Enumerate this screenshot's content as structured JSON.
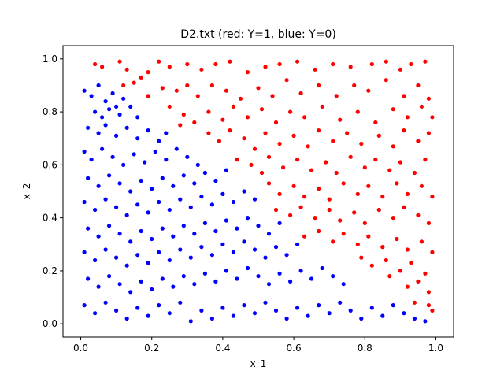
{
  "chart_data": {
    "type": "scatter",
    "title": "D2.txt (red: Y=1, blue: Y=0)",
    "xlabel": "x_1",
    "ylabel": "x_2",
    "xlim": [
      -0.05,
      1.05
    ],
    "ylim": [
      -0.05,
      1.05
    ],
    "xticks": [
      "0.0",
      "0.2",
      "0.4",
      "0.6",
      "0.8",
      "1.0"
    ],
    "yticks": [
      "0.0",
      "0.2",
      "0.4",
      "0.6",
      "0.8",
      "1.0"
    ],
    "grid": false,
    "legend": "none",
    "colors": {
      "Y=1": "#ff0000",
      "Y=0": "#0000ff"
    },
    "series": [
      {
        "label": "Y=1",
        "color": "#ff0000",
        "points": [
          [
            0.04,
            0.98
          ],
          [
            0.06,
            0.97
          ],
          [
            0.11,
            0.99
          ],
          [
            0.13,
            0.96
          ],
          [
            0.17,
            0.93
          ],
          [
            0.19,
            0.95
          ],
          [
            0.22,
            0.99
          ],
          [
            0.25,
            0.97
          ],
          [
            0.3,
            0.98
          ],
          [
            0.34,
            0.96
          ],
          [
            0.38,
            0.98
          ],
          [
            0.42,
            0.99
          ],
          [
            0.47,
            0.95
          ],
          [
            0.52,
            0.97
          ],
          [
            0.56,
            0.98
          ],
          [
            0.61,
            0.99
          ],
          [
            0.66,
            0.96
          ],
          [
            0.71,
            0.98
          ],
          [
            0.76,
            0.97
          ],
          [
            0.82,
            0.98
          ],
          [
            0.86,
            0.99
          ],
          [
            0.9,
            0.96
          ],
          [
            0.93,
            0.98
          ],
          [
            0.97,
            0.99
          ],
          [
            0.12,
            0.9
          ],
          [
            0.15,
            0.91
          ],
          [
            0.19,
            0.86
          ],
          [
            0.23,
            0.89
          ],
          [
            0.27,
            0.88
          ],
          [
            0.3,
            0.9
          ],
          [
            0.33,
            0.86
          ],
          [
            0.37,
            0.9
          ],
          [
            0.41,
            0.88
          ],
          [
            0.45,
            0.85
          ],
          [
            0.5,
            0.89
          ],
          [
            0.54,
            0.86
          ],
          [
            0.58,
            0.92
          ],
          [
            0.62,
            0.87
          ],
          [
            0.67,
            0.9
          ],
          [
            0.72,
            0.86
          ],
          [
            0.77,
            0.9
          ],
          [
            0.81,
            0.88
          ],
          [
            0.86,
            0.92
          ],
          [
            0.91,
            0.86
          ],
          [
            0.95,
            0.9
          ],
          [
            0.98,
            0.85
          ],
          [
            0.25,
            0.82
          ],
          [
            0.29,
            0.79
          ],
          [
            0.32,
            0.76
          ],
          [
            0.28,
            0.75
          ],
          [
            0.36,
            0.8
          ],
          [
            0.4,
            0.77
          ],
          [
            0.43,
            0.82
          ],
          [
            0.47,
            0.78
          ],
          [
            0.51,
            0.81
          ],
          [
            0.55,
            0.76
          ],
          [
            0.59,
            0.8
          ],
          [
            0.63,
            0.78
          ],
          [
            0.68,
            0.82
          ],
          [
            0.73,
            0.77
          ],
          [
            0.78,
            0.8
          ],
          [
            0.83,
            0.76
          ],
          [
            0.88,
            0.81
          ],
          [
            0.92,
            0.78
          ],
          [
            0.96,
            0.82
          ],
          [
            0.99,
            0.78
          ],
          [
            0.36,
            0.72
          ],
          [
            0.39,
            0.69
          ],
          [
            0.42,
            0.73
          ],
          [
            0.46,
            0.7
          ],
          [
            0.49,
            0.66
          ],
          [
            0.52,
            0.72
          ],
          [
            0.56,
            0.68
          ],
          [
            0.6,
            0.71
          ],
          [
            0.64,
            0.67
          ],
          [
            0.67,
            0.73
          ],
          [
            0.71,
            0.69
          ],
          [
            0.75,
            0.72
          ],
          [
            0.79,
            0.68
          ],
          [
            0.84,
            0.71
          ],
          [
            0.88,
            0.67
          ],
          [
            0.91,
            0.73
          ],
          [
            0.95,
            0.69
          ],
          [
            0.98,
            0.72
          ],
          [
            0.44,
            0.62
          ],
          [
            0.48,
            0.6
          ],
          [
            0.51,
            0.57
          ],
          [
            0.53,
            0.63
          ],
          [
            0.57,
            0.59
          ],
          [
            0.61,
            0.62
          ],
          [
            0.65,
            0.58
          ],
          [
            0.69,
            0.61
          ],
          [
            0.72,
            0.57
          ],
          [
            0.76,
            0.63
          ],
          [
            0.8,
            0.59
          ],
          [
            0.83,
            0.62
          ],
          [
            0.87,
            0.58
          ],
          [
            0.9,
            0.61
          ],
          [
            0.94,
            0.57
          ],
          [
            0.97,
            0.62
          ],
          [
            0.53,
            0.53
          ],
          [
            0.56,
            0.49
          ],
          [
            0.6,
            0.52
          ],
          [
            0.63,
            0.48
          ],
          [
            0.67,
            0.51
          ],
          [
            0.7,
            0.47
          ],
          [
            0.74,
            0.53
          ],
          [
            0.78,
            0.49
          ],
          [
            0.81,
            0.52
          ],
          [
            0.85,
            0.48
          ],
          [
            0.89,
            0.53
          ],
          [
            0.92,
            0.49
          ],
          [
            0.96,
            0.52
          ],
          [
            0.99,
            0.48
          ],
          [
            0.55,
            0.43
          ],
          [
            0.59,
            0.41
          ],
          [
            0.62,
            0.44
          ],
          [
            0.66,
            0.4
          ],
          [
            0.7,
            0.43
          ],
          [
            0.73,
            0.39
          ],
          [
            0.77,
            0.42
          ],
          [
            0.8,
            0.38
          ],
          [
            0.84,
            0.43
          ],
          [
            0.88,
            0.4
          ],
          [
            0.91,
            0.44
          ],
          [
            0.95,
            0.41
          ],
          [
            0.98,
            0.38
          ],
          [
            0.63,
            0.33
          ],
          [
            0.67,
            0.35
          ],
          [
            0.71,
            0.31
          ],
          [
            0.74,
            0.34
          ],
          [
            0.78,
            0.3
          ],
          [
            0.81,
            0.33
          ],
          [
            0.85,
            0.29
          ],
          [
            0.89,
            0.32
          ],
          [
            0.92,
            0.28
          ],
          [
            0.96,
            0.31
          ],
          [
            0.99,
            0.27
          ],
          [
            0.79,
            0.25
          ],
          [
            0.82,
            0.22
          ],
          [
            0.86,
            0.24
          ],
          [
            0.9,
            0.2
          ],
          [
            0.93,
            0.23
          ],
          [
            0.97,
            0.19
          ],
          [
            0.87,
            0.18
          ],
          [
            0.92,
            0.14
          ],
          [
            0.95,
            0.16
          ],
          [
            0.98,
            0.12
          ],
          [
            0.94,
            0.08
          ],
          [
            0.98,
            0.07
          ],
          [
            0.99,
            0.05
          ]
        ]
      },
      {
        "label": "Y=0",
        "color": "#0000ff",
        "points": [
          [
            0.01,
            0.88
          ],
          [
            0.03,
            0.86
          ],
          [
            0.05,
            0.9
          ],
          [
            0.07,
            0.84
          ],
          [
            0.09,
            0.87
          ],
          [
            0.1,
            0.82
          ],
          [
            0.12,
            0.85
          ],
          [
            0.04,
            0.8
          ],
          [
            0.06,
            0.78
          ],
          [
            0.08,
            0.81
          ],
          [
            0.11,
            0.79
          ],
          [
            0.14,
            0.82
          ],
          [
            0.16,
            0.78
          ],
          [
            0.02,
            0.74
          ],
          [
            0.05,
            0.72
          ],
          [
            0.07,
            0.75
          ],
          [
            0.1,
            0.71
          ],
          [
            0.13,
            0.74
          ],
          [
            0.16,
            0.7
          ],
          [
            0.19,
            0.73
          ],
          [
            0.22,
            0.69
          ],
          [
            0.24,
            0.72
          ],
          [
            0.01,
            0.65
          ],
          [
            0.03,
            0.62
          ],
          [
            0.06,
            0.66
          ],
          [
            0.09,
            0.63
          ],
          [
            0.12,
            0.6
          ],
          [
            0.15,
            0.64
          ],
          [
            0.18,
            0.61
          ],
          [
            0.21,
            0.65
          ],
          [
            0.24,
            0.62
          ],
          [
            0.27,
            0.66
          ],
          [
            0.3,
            0.63
          ],
          [
            0.33,
            0.6
          ],
          [
            0.02,
            0.55
          ],
          [
            0.05,
            0.52
          ],
          [
            0.08,
            0.56
          ],
          [
            0.11,
            0.53
          ],
          [
            0.14,
            0.5
          ],
          [
            0.17,
            0.54
          ],
          [
            0.2,
            0.51
          ],
          [
            0.23,
            0.55
          ],
          [
            0.26,
            0.52
          ],
          [
            0.29,
            0.56
          ],
          [
            0.32,
            0.53
          ],
          [
            0.35,
            0.57
          ],
          [
            0.38,
            0.54
          ],
          [
            0.41,
            0.58
          ],
          [
            0.01,
            0.46
          ],
          [
            0.04,
            0.43
          ],
          [
            0.07,
            0.47
          ],
          [
            0.1,
            0.44
          ],
          [
            0.13,
            0.41
          ],
          [
            0.16,
            0.45
          ],
          [
            0.19,
            0.42
          ],
          [
            0.22,
            0.46
          ],
          [
            0.25,
            0.43
          ],
          [
            0.28,
            0.47
          ],
          [
            0.31,
            0.44
          ],
          [
            0.34,
            0.48
          ],
          [
            0.37,
            0.45
          ],
          [
            0.4,
            0.49
          ],
          [
            0.43,
            0.46
          ],
          [
            0.46,
            0.5
          ],
          [
            0.49,
            0.47
          ],
          [
            0.02,
            0.36
          ],
          [
            0.05,
            0.33
          ],
          [
            0.08,
            0.37
          ],
          [
            0.11,
            0.34
          ],
          [
            0.14,
            0.31
          ],
          [
            0.17,
            0.35
          ],
          [
            0.2,
            0.32
          ],
          [
            0.23,
            0.36
          ],
          [
            0.26,
            0.33
          ],
          [
            0.29,
            0.37
          ],
          [
            0.32,
            0.34
          ],
          [
            0.35,
            0.38
          ],
          [
            0.38,
            0.35
          ],
          [
            0.41,
            0.39
          ],
          [
            0.44,
            0.36
          ],
          [
            0.47,
            0.4
          ],
          [
            0.5,
            0.37
          ],
          [
            0.53,
            0.34
          ],
          [
            0.56,
            0.38
          ],
          [
            0.01,
            0.27
          ],
          [
            0.04,
            0.24
          ],
          [
            0.07,
            0.28
          ],
          [
            0.1,
            0.25
          ],
          [
            0.13,
            0.22
          ],
          [
            0.16,
            0.26
          ],
          [
            0.19,
            0.23
          ],
          [
            0.22,
            0.27
          ],
          [
            0.25,
            0.24
          ],
          [
            0.28,
            0.28
          ],
          [
            0.31,
            0.25
          ],
          [
            0.34,
            0.29
          ],
          [
            0.37,
            0.26
          ],
          [
            0.4,
            0.3
          ],
          [
            0.43,
            0.27
          ],
          [
            0.46,
            0.31
          ],
          [
            0.49,
            0.28
          ],
          [
            0.52,
            0.25
          ],
          [
            0.55,
            0.29
          ],
          [
            0.58,
            0.26
          ],
          [
            0.61,
            0.3
          ],
          [
            0.02,
            0.17
          ],
          [
            0.05,
            0.14
          ],
          [
            0.08,
            0.18
          ],
          [
            0.11,
            0.15
          ],
          [
            0.14,
            0.12
          ],
          [
            0.17,
            0.16
          ],
          [
            0.2,
            0.13
          ],
          [
            0.23,
            0.17
          ],
          [
            0.26,
            0.14
          ],
          [
            0.29,
            0.18
          ],
          [
            0.32,
            0.15
          ],
          [
            0.35,
            0.19
          ],
          [
            0.38,
            0.16
          ],
          [
            0.41,
            0.2
          ],
          [
            0.44,
            0.17
          ],
          [
            0.47,
            0.21
          ],
          [
            0.5,
            0.18
          ],
          [
            0.53,
            0.15
          ],
          [
            0.56,
            0.19
          ],
          [
            0.59,
            0.16
          ],
          [
            0.62,
            0.2
          ],
          [
            0.65,
            0.17
          ],
          [
            0.68,
            0.21
          ],
          [
            0.71,
            0.18
          ],
          [
            0.74,
            0.15
          ],
          [
            0.01,
            0.07
          ],
          [
            0.04,
            0.04
          ],
          [
            0.07,
            0.08
          ],
          [
            0.1,
            0.05
          ],
          [
            0.13,
            0.02
          ],
          [
            0.16,
            0.06
          ],
          [
            0.19,
            0.03
          ],
          [
            0.22,
            0.07
          ],
          [
            0.25,
            0.04
          ],
          [
            0.28,
            0.08
          ],
          [
            0.31,
            0.01
          ],
          [
            0.34,
            0.05
          ],
          [
            0.37,
            0.02
          ],
          [
            0.4,
            0.06
          ],
          [
            0.43,
            0.03
          ],
          [
            0.46,
            0.07
          ],
          [
            0.49,
            0.04
          ],
          [
            0.52,
            0.08
          ],
          [
            0.55,
            0.05
          ],
          [
            0.58,
            0.02
          ],
          [
            0.61,
            0.06
          ],
          [
            0.64,
            0.03
          ],
          [
            0.67,
            0.07
          ],
          [
            0.7,
            0.04
          ],
          [
            0.73,
            0.08
          ],
          [
            0.76,
            0.05
          ],
          [
            0.79,
            0.02
          ],
          [
            0.82,
            0.06
          ],
          [
            0.85,
            0.03
          ],
          [
            0.88,
            0.07
          ],
          [
            0.91,
            0.04
          ],
          [
            0.94,
            0.02
          ],
          [
            0.97,
            0.01
          ]
        ]
      }
    ]
  }
}
